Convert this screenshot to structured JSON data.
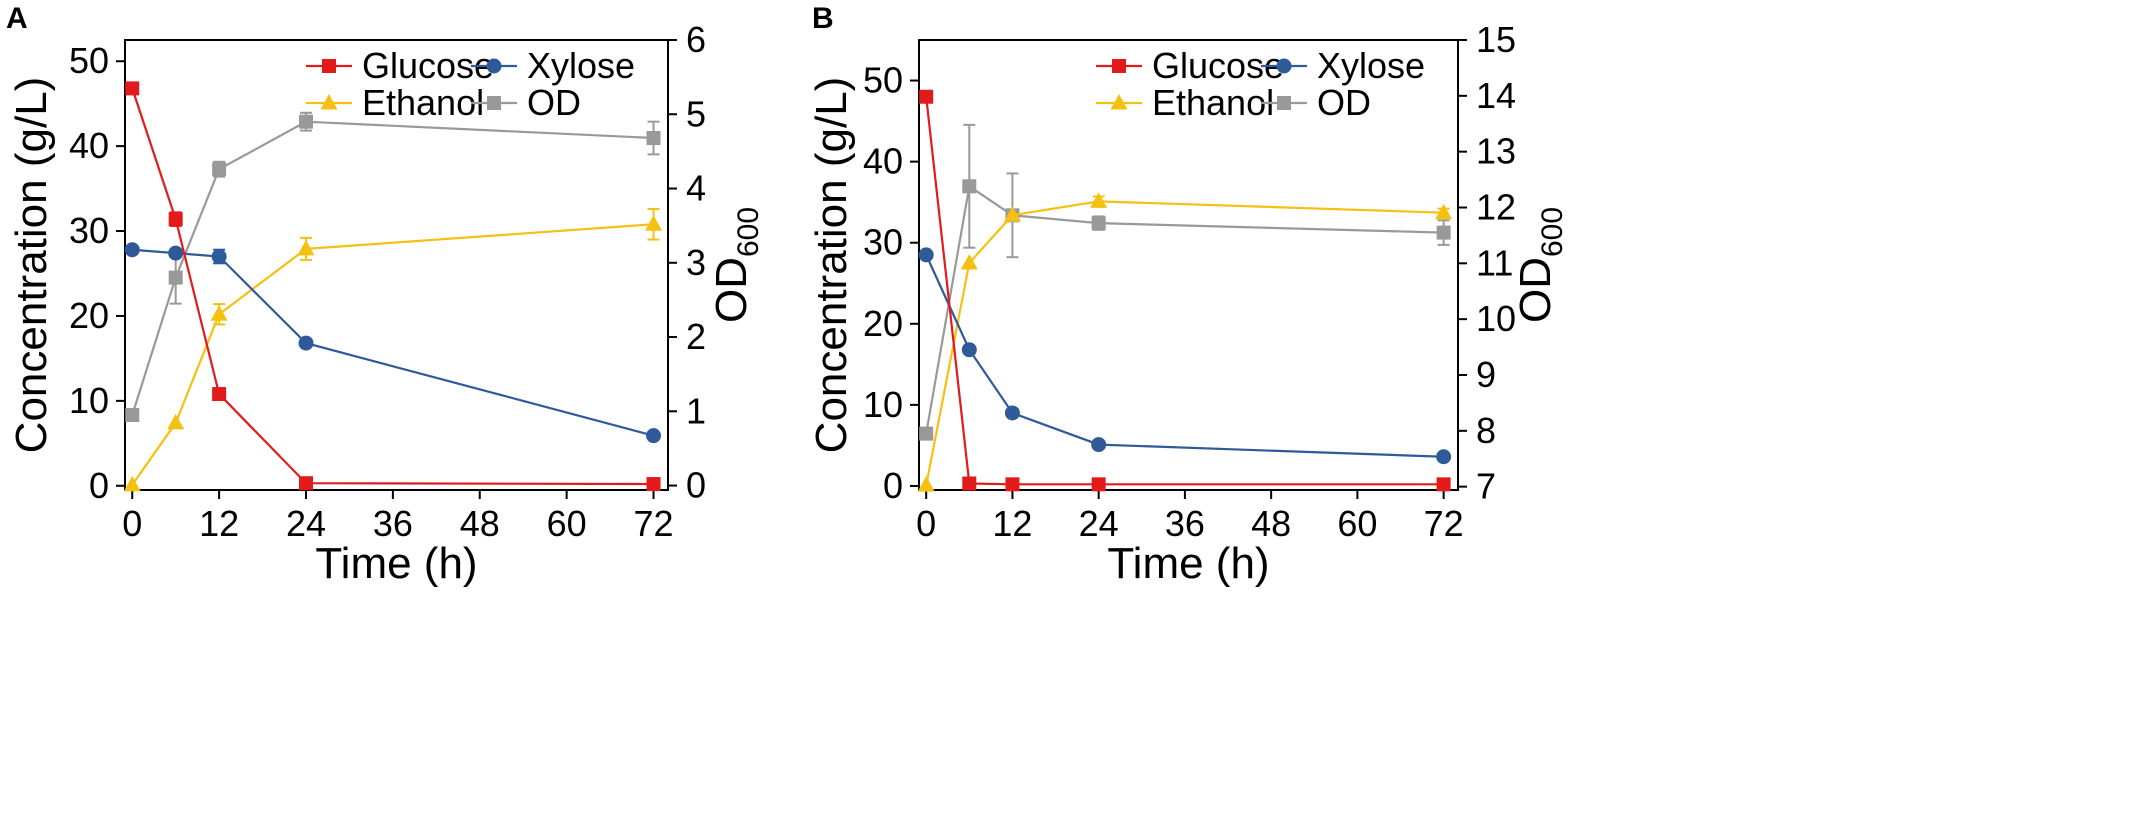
{
  "chart_data": [
    {
      "panel": "A",
      "type": "line",
      "xlabel": "Time (h)",
      "ylabel": "Concentration (g/L)",
      "y2label_main": "OD",
      "y2label_sub": "600",
      "xlim": [
        -1,
        74
      ],
      "xticks": [
        0,
        12,
        24,
        36,
        48,
        60,
        72
      ],
      "ylim": [
        -0.5,
        52.5
      ],
      "yticks": [
        0,
        10,
        20,
        30,
        40,
        50
      ],
      "y2lim": [
        -0.06,
        6.0
      ],
      "y2ticks": [
        0,
        1,
        2,
        3,
        4,
        5,
        6
      ],
      "legend_position": "top-right",
      "series": [
        {
          "name": "Glucose",
          "axis": "left",
          "marker": "square",
          "color": "#e31a1c",
          "x": [
            0,
            6,
            12,
            24,
            72
          ],
          "y": [
            46.8,
            31.4,
            10.8,
            0.3,
            0.2
          ],
          "err": [
            0,
            0.8,
            0,
            0,
            0
          ]
        },
        {
          "name": "Xylose",
          "axis": "left",
          "marker": "circle",
          "color": "#2f5a9a",
          "x": [
            0,
            6,
            12,
            24,
            72
          ],
          "y": [
            27.8,
            27.4,
            27.0,
            16.8,
            5.9
          ],
          "err": [
            0,
            0,
            0.8,
            0,
            0
          ]
        },
        {
          "name": "Ethanol",
          "axis": "left",
          "marker": "triangle",
          "color": "#f5c010",
          "x": [
            0,
            6,
            12,
            24,
            72
          ],
          "y": [
            0.1,
            7.4,
            20.2,
            27.9,
            30.8
          ],
          "err": [
            0,
            0,
            1.2,
            1.3,
            1.8
          ]
        },
        {
          "name": "OD",
          "axis": "right",
          "marker": "square",
          "color": "#999999",
          "x": [
            0,
            6,
            12,
            24,
            72
          ],
          "y": [
            0.95,
            2.8,
            4.26,
            4.9,
            4.68
          ],
          "err": [
            0,
            0.35,
            0.1,
            0.12,
            0.22
          ]
        }
      ]
    },
    {
      "panel": "B",
      "type": "line",
      "xlabel": "Time (h)",
      "ylabel": "Concentration (g/L)",
      "y2label_main": "OD",
      "y2label_sub": "600",
      "xlim": [
        -1,
        74
      ],
      "xticks": [
        0,
        12,
        24,
        36,
        48,
        60,
        72
      ],
      "ylim": [
        -0.5,
        55
      ],
      "yticks": [
        0,
        10,
        20,
        30,
        40,
        50
      ],
      "y2lim": [
        6.94,
        15.0
      ],
      "y2ticks": [
        7,
        8,
        9,
        10,
        11,
        12,
        13,
        14,
        15
      ],
      "legend_position": "top-right",
      "series": [
        {
          "name": "Glucose",
          "axis": "left",
          "marker": "square",
          "color": "#e31a1c",
          "x": [
            0,
            6,
            12,
            24,
            72
          ],
          "y": [
            48.0,
            0.3,
            0.2,
            0.2,
            0.2
          ],
          "err": [
            0,
            0,
            0,
            0,
            0
          ]
        },
        {
          "name": "Xylose",
          "axis": "left",
          "marker": "circle",
          "color": "#2f5a9a",
          "x": [
            0,
            6,
            12,
            24,
            72
          ],
          "y": [
            28.5,
            16.8,
            9.0,
            5.1,
            3.6
          ],
          "err": [
            0,
            0,
            0,
            0,
            0
          ]
        },
        {
          "name": "Ethanol",
          "axis": "left",
          "marker": "triangle",
          "color": "#f5c010",
          "x": [
            0,
            6,
            12,
            24,
            72
          ],
          "y": [
            0.1,
            27.5,
            33.4,
            35.1,
            33.7
          ],
          "err": [
            0,
            0,
            0,
            0.6,
            0.5
          ]
        },
        {
          "name": "OD",
          "axis": "right",
          "marker": "square",
          "color": "#999999",
          "x": [
            0,
            6,
            12,
            24,
            72
          ],
          "y": [
            7.95,
            12.38,
            11.86,
            11.72,
            11.55
          ],
          "err": [
            0,
            1.1,
            0.75,
            0.12,
            0.22
          ]
        }
      ]
    }
  ]
}
